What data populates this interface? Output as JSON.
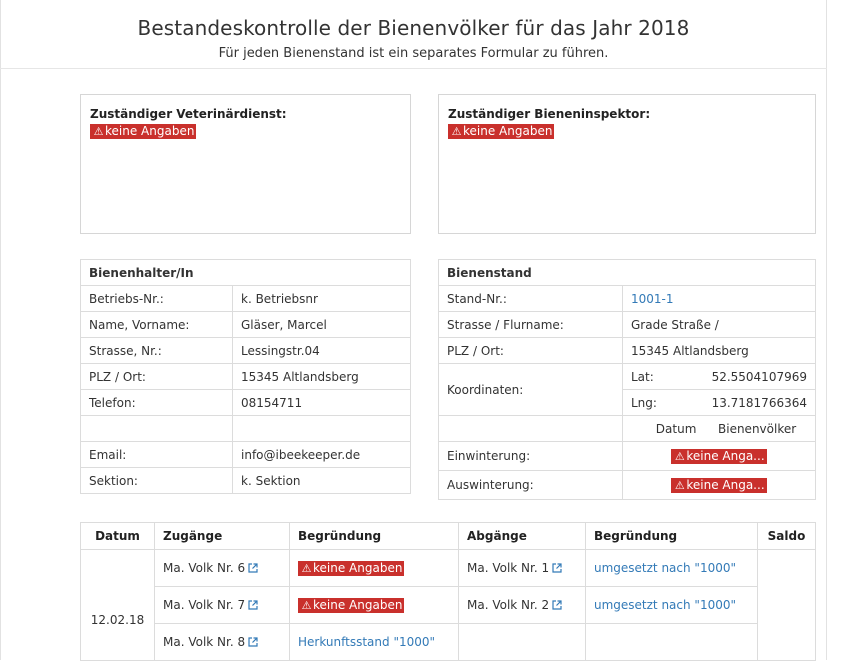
{
  "header": {
    "title": "Bestandeskontrolle der Bienenvölker für das Jahr 2018",
    "subtitle": "Für jeden Bienenstand ist ein separates Formular zu führen."
  },
  "vet_box": {
    "title": "Zuständiger Veterinärdienst:",
    "warning": "keine Angaben"
  },
  "inspector_box": {
    "title": "Zuständiger Bieneninspektor:",
    "warning": "keine Angaben"
  },
  "owner": {
    "heading": "Bienenhalter/In",
    "rows": [
      {
        "label": "Betriebs-Nr.:",
        "value": "k. Betriebsnr"
      },
      {
        "label": "Name, Vorname:",
        "value": "Gläser, Marcel"
      },
      {
        "label": "Strasse, Nr.:",
        "value": "Lessingstr.04"
      },
      {
        "label": "PLZ / Ort:",
        "value": "15345 Altlandsberg"
      },
      {
        "label": "Telefon:",
        "value": "08154711"
      },
      {
        "label": "",
        "value": ""
      },
      {
        "label": "Email:",
        "value": "info@ibeekeeper.de"
      },
      {
        "label": "Sektion:",
        "value": "k. Sektion"
      }
    ]
  },
  "stand": {
    "heading": "Bienenstand",
    "stand_nr_label": "Stand-Nr.:",
    "stand_nr_value": "1001-1",
    "street_label": "Strasse / Flurname:",
    "street_value": "Grade Straße /",
    "plz_label": "PLZ / Ort:",
    "plz_value": "15345 Altlandsberg",
    "coords_label": "Koordinaten:",
    "lat_label": "Lat:",
    "lat_value": "52.5504107969",
    "lng_label": "Lng:",
    "lng_value": "13.7181766364",
    "col_date": "Datum",
    "col_colonies": "Bienenvölker",
    "wintering_label": "Einwinterung:",
    "wintering_warning": "keine Anga...",
    "outwintering_label": "Auswinterung:",
    "outwintering_warning": "keine Anga..."
  },
  "moves": {
    "headers": [
      "Datum",
      "Zugänge",
      "Begründung",
      "Abgänge",
      "Begründung",
      "Saldo"
    ],
    "date": "12.02.18",
    "rows": [
      {
        "incoming": "Ma. Volk Nr. 6",
        "reason_in_warning": "keine Angaben",
        "outgoing": "Ma. Volk Nr. 1",
        "reason_out": "umgesetzt nach \"1000\""
      },
      {
        "incoming": "Ma. Volk Nr. 7",
        "reason_in_warning": "keine Angaben",
        "outgoing": "Ma. Volk Nr. 2",
        "reason_out": "umgesetzt nach \"1000\""
      },
      {
        "incoming": "Ma. Volk Nr. 8",
        "reason_in": "Herkunftsstand \"1000\"",
        "outgoing": "",
        "reason_out": ""
      }
    ]
  },
  "colors": {
    "warning_bg": "#c9302c",
    "link": "#337ab7"
  }
}
